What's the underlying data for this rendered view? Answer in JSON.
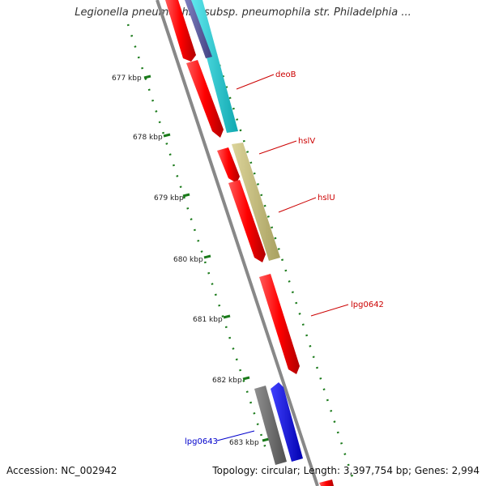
{
  "title": "Legionella pneumophila subsp. pneumophila str. Philadelphia ...",
  "footer": {
    "accession": "Accession: NC_002942",
    "summary": "Topology: circular; Length: 3,397,754 bp; Genes: 2,994"
  },
  "ticks": [
    {
      "label": "677 kbp"
    },
    {
      "label": "678 kbp"
    },
    {
      "label": "679 kbp"
    },
    {
      "label": "680 kbp"
    },
    {
      "label": "681 kbp"
    },
    {
      "label": "682 kbp"
    },
    {
      "label": "683 kbp"
    }
  ],
  "gene_labels": [
    {
      "name": "deoB",
      "color": "#cc0000"
    },
    {
      "name": "hslV",
      "color": "#cc0000"
    },
    {
      "name": "hslU",
      "color": "#cc0000"
    },
    {
      "name": "lpg0642",
      "color": "#cc0000"
    },
    {
      "name": "lpg0643",
      "color": "#0000cc"
    }
  ],
  "colors": {
    "backbone": "#888888",
    "cds_forward": "#ff0000",
    "cds_reverse": "#0000ff",
    "cog_cyan": "#22d0d8",
    "cog_khaki": "#c8c080",
    "cog_gray": "#707070",
    "gc_skew": "#1a7a1a"
  }
}
